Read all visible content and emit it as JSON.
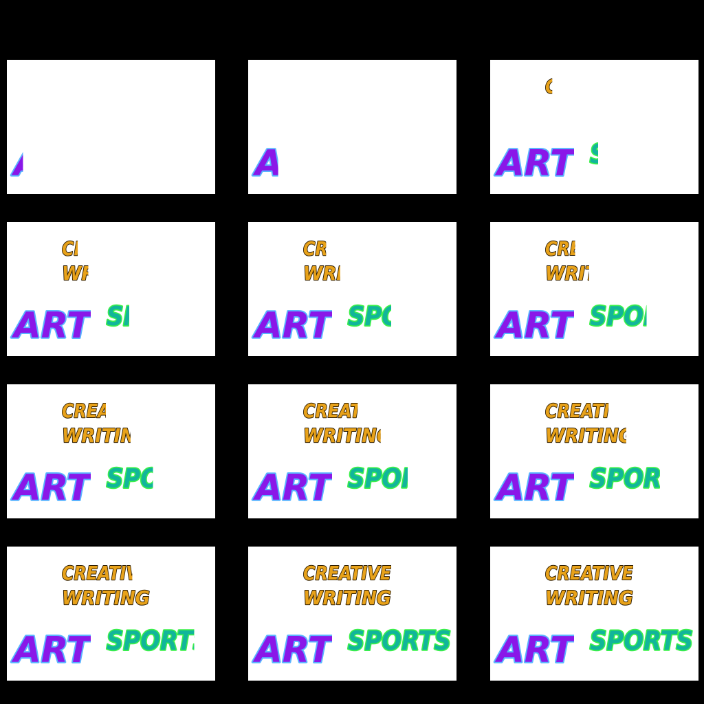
{
  "frames": [
    {
      "reveal": {
        "creative": 0.0,
        "writing": 0.0,
        "art": 0.12,
        "sports": 0.0
      }
    },
    {
      "reveal": {
        "creative": 0.0,
        "writing": 0.0,
        "art": 0.3,
        "sports": 0.0
      }
    },
    {
      "reveal": {
        "creative": 0.08,
        "writing": 0.0,
        "art": 1.0,
        "sports": 0.08
      }
    },
    {
      "reveal": {
        "creative": 0.18,
        "writing": 0.3,
        "art": 1.0,
        "sports": 0.22
      }
    },
    {
      "reveal": {
        "creative": 0.26,
        "writing": 0.42,
        "art": 1.0,
        "sports": 0.42
      }
    },
    {
      "reveal": {
        "creative": 0.34,
        "writing": 0.5,
        "art": 1.0,
        "sports": 0.55
      }
    },
    {
      "reveal": {
        "creative": 0.5,
        "writing": 0.78,
        "art": 1.0,
        "sports": 0.45
      }
    },
    {
      "reveal": {
        "creative": 0.62,
        "writing": 0.88,
        "art": 1.0,
        "sports": 0.58
      }
    },
    {
      "reveal": {
        "creative": 0.72,
        "writing": 0.92,
        "art": 1.0,
        "sports": 0.68
      }
    },
    {
      "reveal": {
        "creative": 0.8,
        "writing": 1.0,
        "art": 1.0,
        "sports": 0.85
      }
    },
    {
      "reveal": {
        "creative": 1.0,
        "writing": 1.0,
        "art": 1.0,
        "sports": 1.0
      }
    },
    {
      "reveal": {
        "creative": 1.0,
        "writing": 1.0,
        "art": 1.0,
        "sports": 1.0
      }
    }
  ],
  "words": {
    "creative": {
      "text": "CREATIVE",
      "fill": "#e8a21a",
      "stroke": "#2a1a00"
    },
    "writing": {
      "text": "WRITING",
      "fill": "#e8a21a",
      "stroke": "#2a1a00"
    },
    "art": {
      "text": "ART",
      "fill": "#8a17e8",
      "stroke": "#5ab4ff"
    },
    "sports": {
      "text": "SPORTS",
      "fill": "#12b59a",
      "stroke": "#3cf04a"
    }
  }
}
